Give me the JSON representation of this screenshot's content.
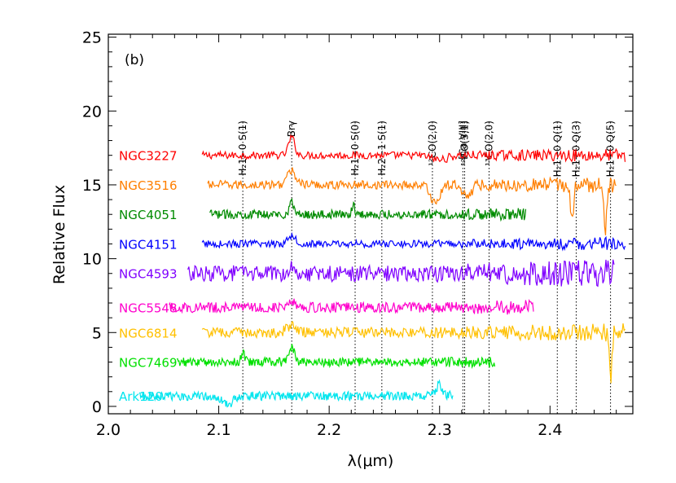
{
  "chart_data": {
    "type": "line",
    "panel_label": "(b)",
    "xlabel": "λ(μm)",
    "ylabel": "Relative Flux",
    "xlim": [
      2.0,
      2.475
    ],
    "ylim": [
      -0.5,
      25.2
    ],
    "xticks": [
      {
        "value": 2.0,
        "label": "2.0"
      },
      {
        "value": 2.1,
        "label": "2.1"
      },
      {
        "value": 2.2,
        "label": "2.2"
      },
      {
        "value": 2.3,
        "label": "2.3"
      },
      {
        "value": 2.4,
        "label": "2.4"
      }
    ],
    "yticks": [
      {
        "value": 0,
        "label": "0"
      },
      {
        "value": 5,
        "label": "5"
      },
      {
        "value": 10,
        "label": "10"
      },
      {
        "value": 15,
        "label": "15"
      },
      {
        "value": 20,
        "label": "20"
      },
      {
        "value": 25,
        "label": "25"
      }
    ],
    "grid": false,
    "legend_placement": "left (labels inline beside spectra)",
    "emission_lines": [
      {
        "wavelength": 2.1218,
        "label": "H₂1−0 S(1)"
      },
      {
        "wavelength": 2.1661,
        "label": "Brγ"
      },
      {
        "wavelength": 2.2235,
        "label": "H₂1−0 S(0)"
      },
      {
        "wavelength": 2.2477,
        "label": "H₂2−1 S(1)"
      },
      {
        "wavelength": 2.2935,
        "label": "¹²CO(2,0)"
      },
      {
        "wavelength": 2.3227,
        "label": "¹²CO(3,1)"
      },
      {
        "wavelength": 2.3211,
        "label": "[Ca VIII]"
      },
      {
        "wavelength": 2.3448,
        "label": "¹³CO(2,0)"
      },
      {
        "wavelength": 2.4066,
        "label": "H₂1−0 Q(1)"
      },
      {
        "wavelength": 2.4237,
        "label": "H₂1−0 Q(3)"
      },
      {
        "wavelength": 2.4548,
        "label": "H₂1−0 Q(5)"
      }
    ],
    "series": [
      {
        "name": "NGC3227",
        "color": "#ff0000",
        "x_range": [
          2.085,
          2.468
        ],
        "level": 17.0,
        "noise": 0.25,
        "features": [
          {
            "x": 2.166,
            "amp": 1.2,
            "w": 0.004
          },
          {
            "x": 2.3,
            "amp": -0.3,
            "w": 0.01
          }
        ]
      },
      {
        "name": "NGC3516",
        "color": "#ff7f00",
        "x_range": [
          2.09,
          2.46
        ],
        "level": 15.0,
        "noise": 0.3,
        "features": [
          {
            "x": 2.166,
            "amp": 0.9,
            "w": 0.006
          },
          {
            "x": 2.296,
            "amp": -1.2,
            "w": 0.006
          },
          {
            "x": 2.325,
            "amp": -0.8,
            "w": 0.005
          },
          {
            "x": 2.42,
            "amp": -2.5,
            "w": 0.002
          },
          {
            "x": 2.45,
            "amp": -3.0,
            "w": 0.002
          }
        ]
      },
      {
        "name": "NGC4051",
        "color": "#008b00",
        "x_range": [
          2.092,
          2.378
        ],
        "level": 13.0,
        "noise": 0.3,
        "features": [
          {
            "x": 2.166,
            "amp": 0.8,
            "w": 0.003
          },
          {
            "x": 2.222,
            "amp": 0.6,
            "w": 0.002
          }
        ]
      },
      {
        "name": "NGC4151",
        "color": "#0000ff",
        "x_range": [
          2.085,
          2.468
        ],
        "level": 11.0,
        "noise": 0.25,
        "features": [
          {
            "x": 2.166,
            "amp": 0.6,
            "w": 0.005
          }
        ]
      },
      {
        "name": "NGC4593",
        "color": "#7f00ff",
        "x_range": [
          2.072,
          2.458
        ],
        "level": 9.0,
        "noise": 0.55,
        "features": [
          {
            "x": 2.166,
            "amp": 0.5,
            "w": 0.005
          }
        ]
      },
      {
        "name": "NGC5548",
        "color": "#ff00cc",
        "x_range": [
          2.055,
          2.385
        ],
        "level": 6.7,
        "noise": 0.35,
        "features": [
          {
            "x": 2.166,
            "amp": 0.5,
            "w": 0.005
          }
        ]
      },
      {
        "name": "NGC6814",
        "color": "#ffc000",
        "x_range": [
          2.085,
          2.468
        ],
        "level": 5.0,
        "noise": 0.35,
        "features": [
          {
            "x": 2.166,
            "amp": 0.5,
            "w": 0.006
          },
          {
            "x": 2.455,
            "amp": -3.5,
            "w": 0.0015
          }
        ]
      },
      {
        "name": "NGC7469",
        "color": "#00e000",
        "x_range": [
          2.062,
          2.35
        ],
        "level": 3.0,
        "noise": 0.3,
        "features": [
          {
            "x": 2.166,
            "amp": 1.0,
            "w": 0.004
          },
          {
            "x": 2.122,
            "amp": 0.6,
            "w": 0.0025
          }
        ]
      },
      {
        "name": "Ark120",
        "color": "#00e5ee",
        "x_range": [
          2.028,
          2.312
        ],
        "level": 0.7,
        "noise": 0.3,
        "features": [
          {
            "x": 2.108,
            "amp": -0.6,
            "w": 0.006
          },
          {
            "x": 2.3,
            "amp": 0.8,
            "w": 0.004
          }
        ]
      }
    ]
  }
}
